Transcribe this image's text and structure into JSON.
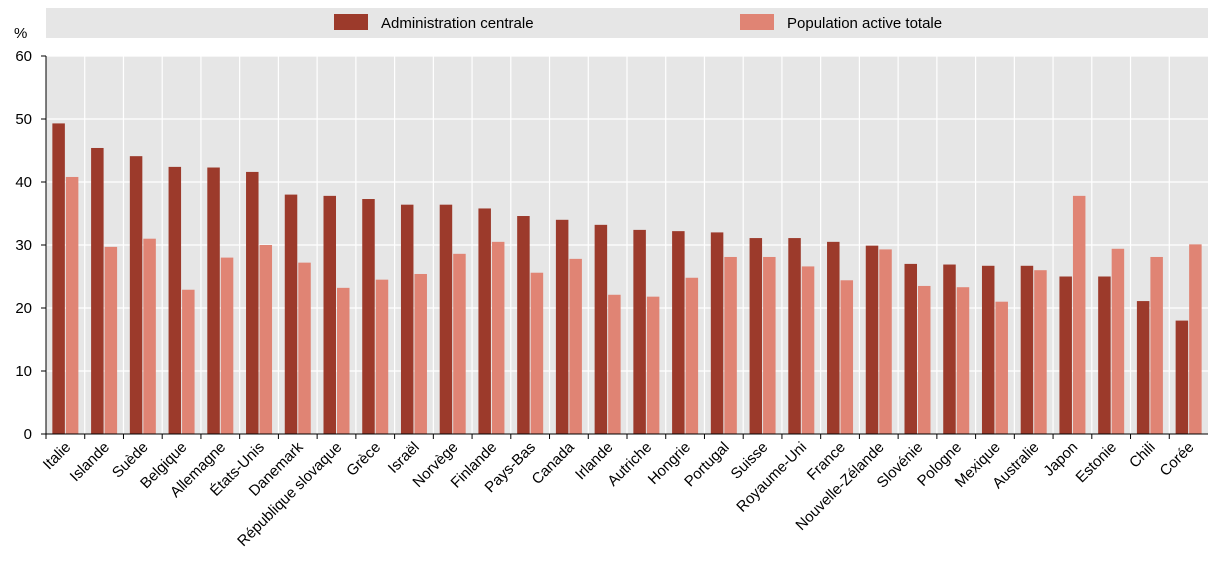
{
  "chart_data": {
    "type": "bar",
    "ylabel": "%",
    "ylim": [
      0,
      60
    ],
    "yticks": [
      0,
      10,
      20,
      30,
      40,
      50,
      60
    ],
    "grid": true,
    "legend_position": "top",
    "categories": [
      "Italie",
      "Islande",
      "Suède",
      "Belgique",
      "Allemagne",
      "États-Unis",
      "Danemark",
      "République slovaque",
      "Grèce",
      "Israël",
      "Norvège",
      "Finlande",
      "Pays-Bas",
      "Canada",
      "Irlande",
      "Autriche",
      "Hongrie",
      "Portugal",
      "Suisse",
      "Royaume-Uni",
      "France",
      "Nouvelle-Zélande",
      "Slovénie",
      "Pologne",
      "Mexique",
      "Australie",
      "Japon",
      "Estonie",
      "Chili",
      "Corée"
    ],
    "series": [
      {
        "name": "Administration centrale",
        "color": "#9c3a2b",
        "values": [
          49.3,
          45.4,
          44.1,
          42.4,
          42.3,
          41.6,
          38.0,
          37.8,
          37.3,
          36.4,
          36.4,
          35.8,
          34.6,
          34.0,
          33.2,
          32.4,
          32.2,
          32.0,
          31.1,
          31.1,
          30.5,
          29.9,
          27.0,
          26.9,
          26.7,
          26.7,
          25.0,
          25.0,
          21.1,
          18.0
        ]
      },
      {
        "name": "Population active totale",
        "color": "#e08474",
        "values": [
          40.8,
          29.7,
          31.0,
          22.9,
          28.0,
          30.0,
          27.2,
          23.2,
          24.5,
          25.4,
          28.6,
          30.5,
          25.6,
          27.8,
          22.1,
          21.8,
          24.8,
          28.1,
          28.1,
          26.6,
          24.4,
          29.3,
          23.5,
          23.3,
          21.0,
          26.0,
          37.8,
          29.4,
          28.1,
          30.1
        ]
      }
    ]
  }
}
